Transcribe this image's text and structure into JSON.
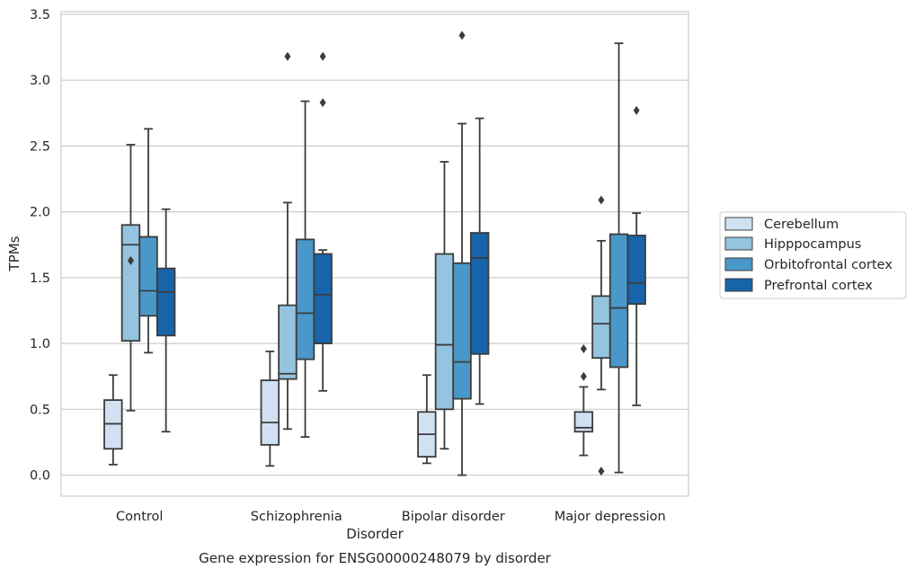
{
  "chart_data": {
    "type": "boxplot",
    "title": "Gene expression for ENSG00000248079 by disorder",
    "xlabel": "Disorder",
    "ylabel": "TPMs",
    "ylim": [
      -0.16,
      3.52
    ],
    "yticks": [
      0.0,
      0.5,
      1.0,
      1.5,
      2.0,
      2.5,
      3.0,
      3.5
    ],
    "ytick_labels": [
      "0.0",
      "0.5",
      "1.0",
      "1.5",
      "2.0",
      "2.5",
      "3.0",
      "3.5"
    ],
    "grid": "horizontal",
    "legend_position": "right, outside plot",
    "categories": [
      "Control",
      "Schizophrenia",
      "Bipolar disorder",
      "Major depression"
    ],
    "series": [
      {
        "name": "Cerebellum",
        "color": "#d0e1f2",
        "boxes": [
          {
            "whislo": 0.08,
            "q1": 0.2,
            "med": 0.39,
            "q3": 0.57,
            "whishi": 0.76,
            "fliers": []
          },
          {
            "whislo": 0.07,
            "q1": 0.23,
            "med": 0.4,
            "q3": 0.72,
            "whishi": 0.94,
            "fliers": []
          },
          {
            "whislo": 0.09,
            "q1": 0.14,
            "med": 0.31,
            "q3": 0.48,
            "whishi": 0.76,
            "fliers": []
          },
          {
            "whislo": 0.15,
            "q1": 0.33,
            "med": 0.36,
            "q3": 0.48,
            "whishi": 0.67,
            "fliers": [
              0.96,
              0.75
            ]
          }
        ]
      },
      {
        "name": "Hipppocampus",
        "color": "#94c4df",
        "boxes": [
          {
            "whislo": 0.49,
            "q1": 1.02,
            "med": 1.75,
            "q3": 1.9,
            "whishi": 2.51,
            "fliers": [
              1.63
            ]
          },
          {
            "whislo": 0.35,
            "q1": 0.73,
            "med": 0.77,
            "q3": 1.29,
            "whishi": 2.07,
            "fliers": [
              3.18
            ]
          },
          {
            "whislo": 0.2,
            "q1": 0.5,
            "med": 0.99,
            "q3": 1.68,
            "whishi": 2.38,
            "fliers": []
          },
          {
            "whislo": 0.65,
            "q1": 0.89,
            "med": 1.15,
            "q3": 1.36,
            "whishi": 1.78,
            "fliers": [
              2.09,
              0.03
            ]
          }
        ]
      },
      {
        "name": "Orbitofrontal cortex",
        "color": "#4a98c9",
        "boxes": [
          {
            "whislo": 0.93,
            "q1": 1.21,
            "med": 1.4,
            "q3": 1.81,
            "whishi": 2.63,
            "fliers": []
          },
          {
            "whislo": 0.29,
            "q1": 0.88,
            "med": 1.23,
            "q3": 1.79,
            "whishi": 2.84,
            "fliers": []
          },
          {
            "whislo": 0.0,
            "q1": 0.58,
            "med": 0.86,
            "q3": 1.61,
            "whishi": 2.67,
            "fliers": [
              3.34
            ]
          },
          {
            "whislo": 0.02,
            "q1": 0.82,
            "med": 1.27,
            "q3": 1.83,
            "whishi": 3.28,
            "fliers": []
          }
        ]
      },
      {
        "name": "Prefrontal cortex",
        "color": "#1764ab",
        "boxes": [
          {
            "whislo": 0.33,
            "q1": 1.06,
            "med": 1.39,
            "q3": 1.57,
            "whishi": 2.02,
            "fliers": []
          },
          {
            "whislo": 0.64,
            "q1": 1.0,
            "med": 1.37,
            "q3": 1.68,
            "whishi": 1.71,
            "fliers": [
              3.18,
              2.83
            ]
          },
          {
            "whislo": 0.54,
            "q1": 0.92,
            "med": 1.65,
            "q3": 1.84,
            "whishi": 2.71,
            "fliers": []
          },
          {
            "whislo": 0.53,
            "q1": 1.3,
            "med": 1.46,
            "q3": 1.82,
            "whishi": 1.99,
            "fliers": [
              2.77
            ]
          }
        ]
      }
    ],
    "styling": {
      "line_color": "#3c3c3c",
      "grid_color": "#cccccc",
      "frame_color": "#cccccc"
    }
  }
}
